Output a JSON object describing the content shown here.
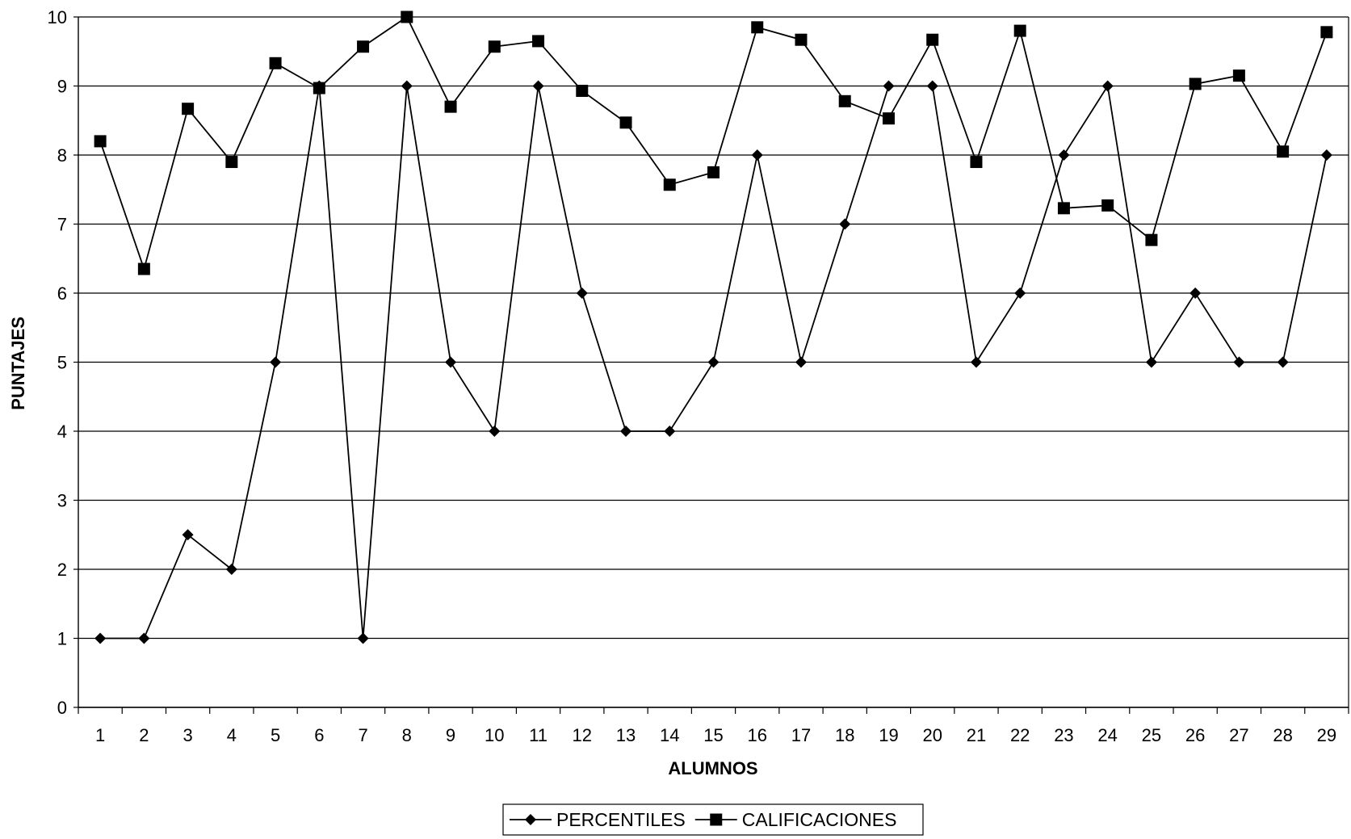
{
  "chart_data": {
    "type": "line",
    "title": "",
    "xlabel": "ALUMNOS",
    "ylabel": "PUNTAJES",
    "ylim": [
      0,
      10
    ],
    "yticks": [
      "0",
      "1",
      "2",
      "3",
      "4",
      "5",
      "6",
      "7",
      "8",
      "9",
      "10"
    ],
    "categories": [
      "1",
      "2",
      "3",
      "4",
      "5",
      "6",
      "7",
      "8",
      "9",
      "10",
      "11",
      "12",
      "13",
      "14",
      "15",
      "16",
      "17",
      "18",
      "19",
      "20",
      "21",
      "22",
      "23",
      "24",
      "25",
      "26",
      "27",
      "28",
      "29"
    ],
    "grid": "horizontal",
    "legend_position": "bottom",
    "series": [
      {
        "name": "PERCENTILES",
        "marker": "diamond",
        "color": "#000000",
        "values": [
          1,
          1,
          2.5,
          2,
          5,
          9,
          1,
          9,
          5,
          4,
          9,
          6,
          4,
          4,
          5,
          8,
          5,
          7,
          9,
          9,
          5,
          6,
          8,
          9,
          5,
          6,
          5,
          5,
          8
        ]
      },
      {
        "name": "CALIFICACIONES",
        "marker": "square",
        "color": "#000000",
        "values": [
          8.2,
          6.35,
          8.67,
          7.9,
          9.33,
          8.97,
          9.57,
          10,
          8.7,
          9.57,
          9.65,
          8.93,
          8.47,
          7.57,
          7.75,
          9.85,
          9.67,
          8.78,
          8.53,
          9.67,
          7.9,
          9.8,
          7.23,
          7.27,
          6.77,
          9.03,
          9.15,
          8.05,
          9.78
        ]
      }
    ]
  }
}
